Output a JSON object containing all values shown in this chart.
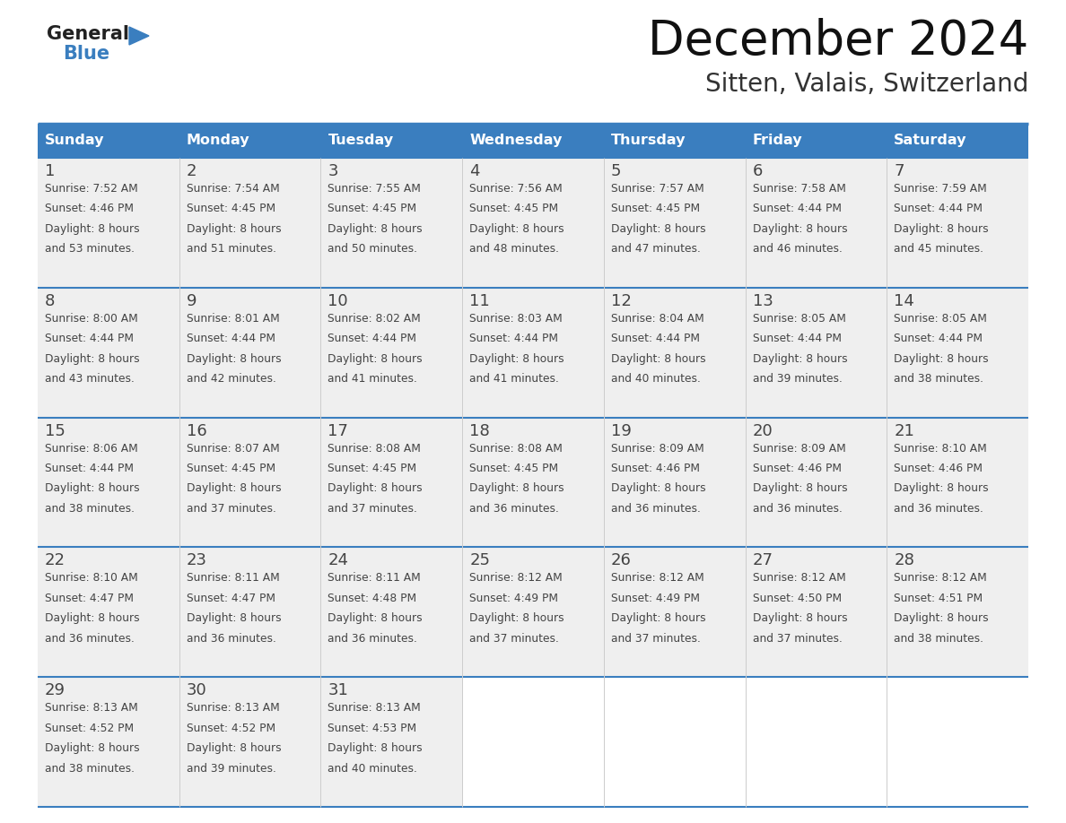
{
  "title": "December 2024",
  "subtitle": "Sitten, Valais, Switzerland",
  "header_color": "#3a7ebf",
  "header_text_color": "#ffffff",
  "days_of_week": [
    "Sunday",
    "Monday",
    "Tuesday",
    "Wednesday",
    "Thursday",
    "Friday",
    "Saturday"
  ],
  "bg_color": "#ffffff",
  "cell_bg_color": "#efefef",
  "grid_line_color": "#3a7ebf",
  "text_color": "#333333",
  "logo_general_color": "#222222",
  "logo_blue_color": "#3a7ebf",
  "logo_triangle_color": "#3a7ebf",
  "calendar_data": [
    [
      {
        "day": 1,
        "sunrise": "7:52 AM",
        "sunset": "4:46 PM",
        "daylight": "8 hours and 53 minutes"
      },
      {
        "day": 2,
        "sunrise": "7:54 AM",
        "sunset": "4:45 PM",
        "daylight": "8 hours and 51 minutes"
      },
      {
        "day": 3,
        "sunrise": "7:55 AM",
        "sunset": "4:45 PM",
        "daylight": "8 hours and 50 minutes"
      },
      {
        "day": 4,
        "sunrise": "7:56 AM",
        "sunset": "4:45 PM",
        "daylight": "8 hours and 48 minutes"
      },
      {
        "day": 5,
        "sunrise": "7:57 AM",
        "sunset": "4:45 PM",
        "daylight": "8 hours and 47 minutes"
      },
      {
        "day": 6,
        "sunrise": "7:58 AM",
        "sunset": "4:44 PM",
        "daylight": "8 hours and 46 minutes"
      },
      {
        "day": 7,
        "sunrise": "7:59 AM",
        "sunset": "4:44 PM",
        "daylight": "8 hours and 45 minutes"
      }
    ],
    [
      {
        "day": 8,
        "sunrise": "8:00 AM",
        "sunset": "4:44 PM",
        "daylight": "8 hours and 43 minutes"
      },
      {
        "day": 9,
        "sunrise": "8:01 AM",
        "sunset": "4:44 PM",
        "daylight": "8 hours and 42 minutes"
      },
      {
        "day": 10,
        "sunrise": "8:02 AM",
        "sunset": "4:44 PM",
        "daylight": "8 hours and 41 minutes"
      },
      {
        "day": 11,
        "sunrise": "8:03 AM",
        "sunset": "4:44 PM",
        "daylight": "8 hours and 41 minutes"
      },
      {
        "day": 12,
        "sunrise": "8:04 AM",
        "sunset": "4:44 PM",
        "daylight": "8 hours and 40 minutes"
      },
      {
        "day": 13,
        "sunrise": "8:05 AM",
        "sunset": "4:44 PM",
        "daylight": "8 hours and 39 minutes"
      },
      {
        "day": 14,
        "sunrise": "8:05 AM",
        "sunset": "4:44 PM",
        "daylight": "8 hours and 38 minutes"
      }
    ],
    [
      {
        "day": 15,
        "sunrise": "8:06 AM",
        "sunset": "4:44 PM",
        "daylight": "8 hours and 38 minutes"
      },
      {
        "day": 16,
        "sunrise": "8:07 AM",
        "sunset": "4:45 PM",
        "daylight": "8 hours and 37 minutes"
      },
      {
        "day": 17,
        "sunrise": "8:08 AM",
        "sunset": "4:45 PM",
        "daylight": "8 hours and 37 minutes"
      },
      {
        "day": 18,
        "sunrise": "8:08 AM",
        "sunset": "4:45 PM",
        "daylight": "8 hours and 36 minutes"
      },
      {
        "day": 19,
        "sunrise": "8:09 AM",
        "sunset": "4:46 PM",
        "daylight": "8 hours and 36 minutes"
      },
      {
        "day": 20,
        "sunrise": "8:09 AM",
        "sunset": "4:46 PM",
        "daylight": "8 hours and 36 minutes"
      },
      {
        "day": 21,
        "sunrise": "8:10 AM",
        "sunset": "4:46 PM",
        "daylight": "8 hours and 36 minutes"
      }
    ],
    [
      {
        "day": 22,
        "sunrise": "8:10 AM",
        "sunset": "4:47 PM",
        "daylight": "8 hours and 36 minutes"
      },
      {
        "day": 23,
        "sunrise": "8:11 AM",
        "sunset": "4:47 PM",
        "daylight": "8 hours and 36 minutes"
      },
      {
        "day": 24,
        "sunrise": "8:11 AM",
        "sunset": "4:48 PM",
        "daylight": "8 hours and 36 minutes"
      },
      {
        "day": 25,
        "sunrise": "8:12 AM",
        "sunset": "4:49 PM",
        "daylight": "8 hours and 37 minutes"
      },
      {
        "day": 26,
        "sunrise": "8:12 AM",
        "sunset": "4:49 PM",
        "daylight": "8 hours and 37 minutes"
      },
      {
        "day": 27,
        "sunrise": "8:12 AM",
        "sunset": "4:50 PM",
        "daylight": "8 hours and 37 minutes"
      },
      {
        "day": 28,
        "sunrise": "8:12 AM",
        "sunset": "4:51 PM",
        "daylight": "8 hours and 38 minutes"
      }
    ],
    [
      {
        "day": 29,
        "sunrise": "8:13 AM",
        "sunset": "4:52 PM",
        "daylight": "8 hours and 38 minutes"
      },
      {
        "day": 30,
        "sunrise": "8:13 AM",
        "sunset": "4:52 PM",
        "daylight": "8 hours and 39 minutes"
      },
      {
        "day": 31,
        "sunrise": "8:13 AM",
        "sunset": "4:53 PM",
        "daylight": "8 hours and 40 minutes"
      },
      null,
      null,
      null,
      null
    ]
  ]
}
